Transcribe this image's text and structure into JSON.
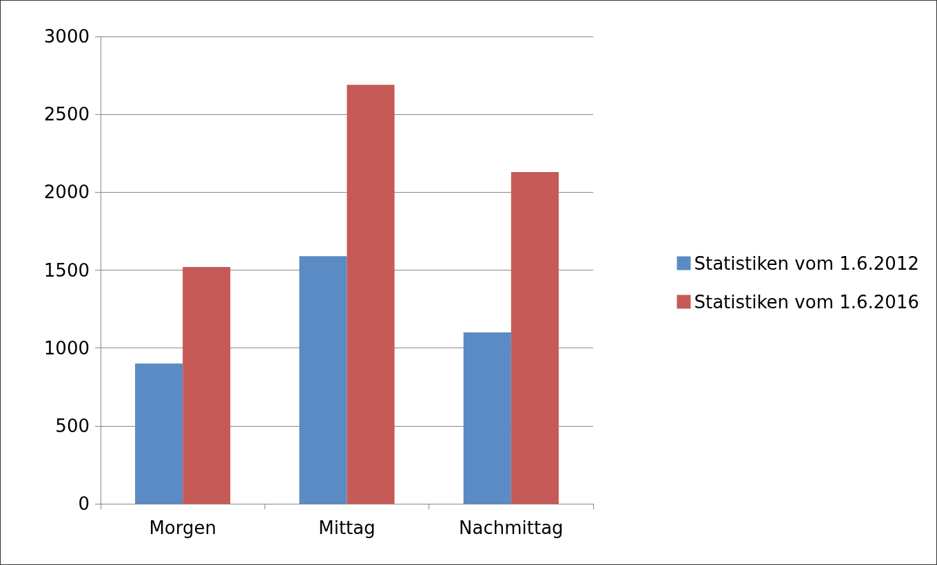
{
  "chart_data": {
    "type": "bar",
    "categories": [
      "Morgen",
      "Mittag",
      "Nachmittag"
    ],
    "series": [
      {
        "name": "Statistiken vom 1.6.2012",
        "color": "#5b8bc5",
        "values": [
          900,
          1590,
          1100
        ]
      },
      {
        "name": "Statistiken vom 1.6.2016",
        "color": "#c65a56",
        "values": [
          1520,
          2690,
          2130
        ]
      }
    ],
    "ylim": [
      0,
      3000
    ],
    "yticks": [
      0,
      500,
      1000,
      1500,
      2000,
      2500,
      3000
    ],
    "grid": "y",
    "legend": "right"
  }
}
